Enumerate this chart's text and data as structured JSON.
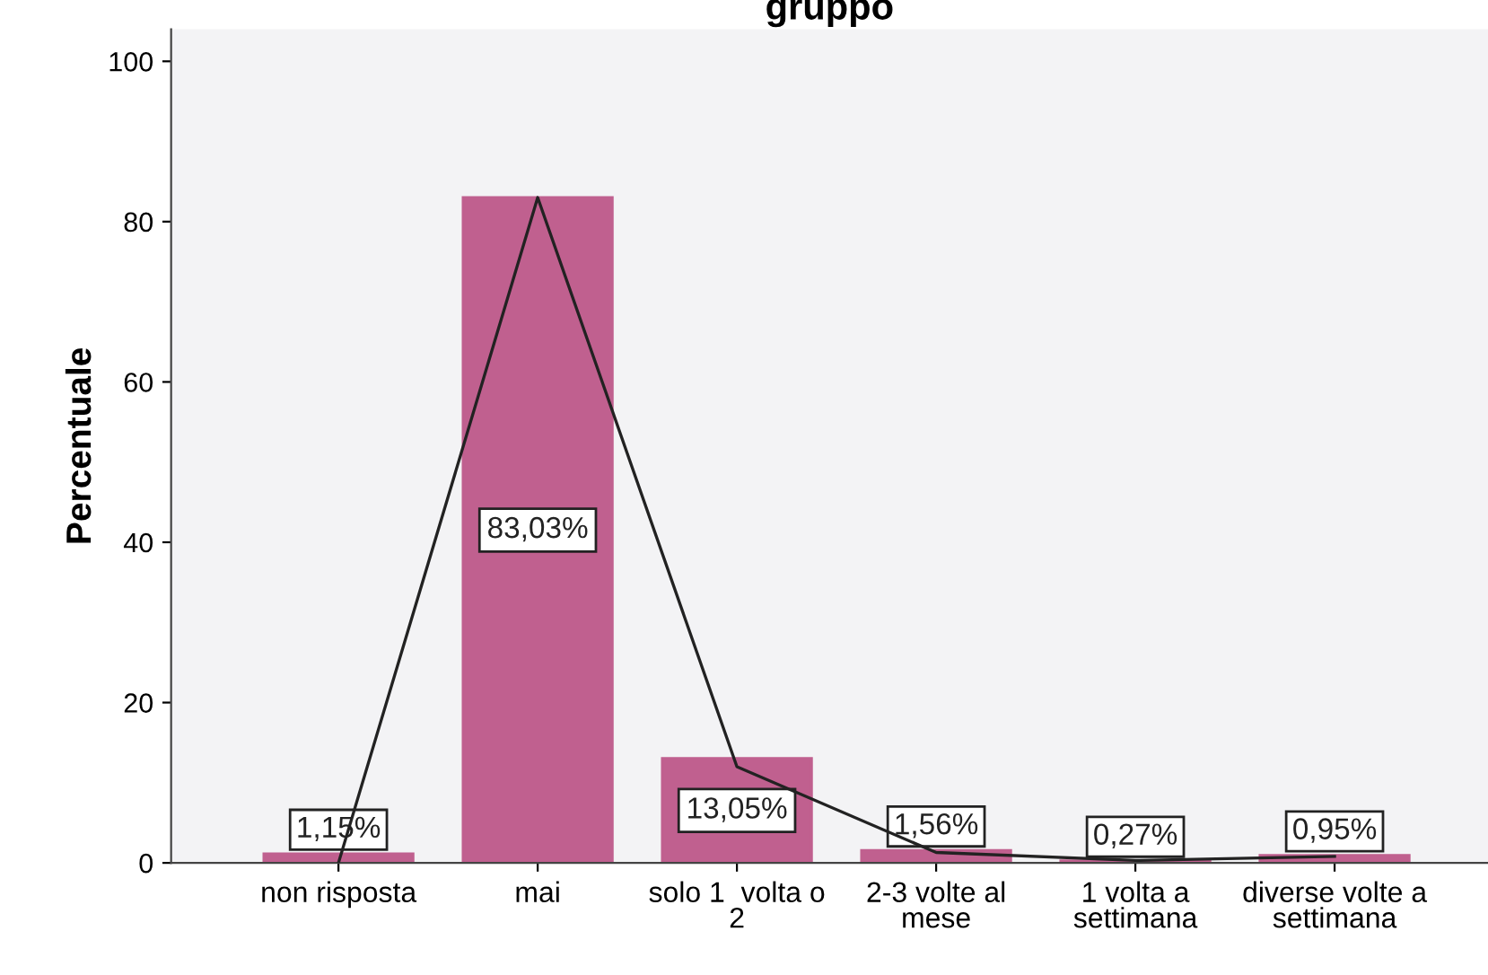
{
  "chart_data": {
    "type": "bar",
    "title": "gruppo",
    "ylabel": "Percentuale",
    "categories": [
      "non risposta",
      "mai",
      "solo 1  volta o 2",
      "2-3 volte al mese",
      "1 volta a settimana",
      "diverse volte a settimana"
    ],
    "series": [
      {
        "color": "#c0608f",
        "values": [
          1.15,
          83.03,
          13.05,
          1.56,
          0.27,
          0.95
        ],
        "value_labels": [
          "1,15%",
          "83,03%",
          "13,05%",
          "1,56%",
          "0,27%",
          "0,95%"
        ]
      },
      {
        "type": "line",
        "color": "#222222",
        "values": [
          0,
          83,
          12,
          1.3,
          0.3,
          0.8
        ]
      }
    ],
    "ylim": [
      0,
      104
    ],
    "yticks": [
      0,
      20,
      40,
      60,
      80,
      100
    ],
    "grid": false,
    "legend": false
  }
}
